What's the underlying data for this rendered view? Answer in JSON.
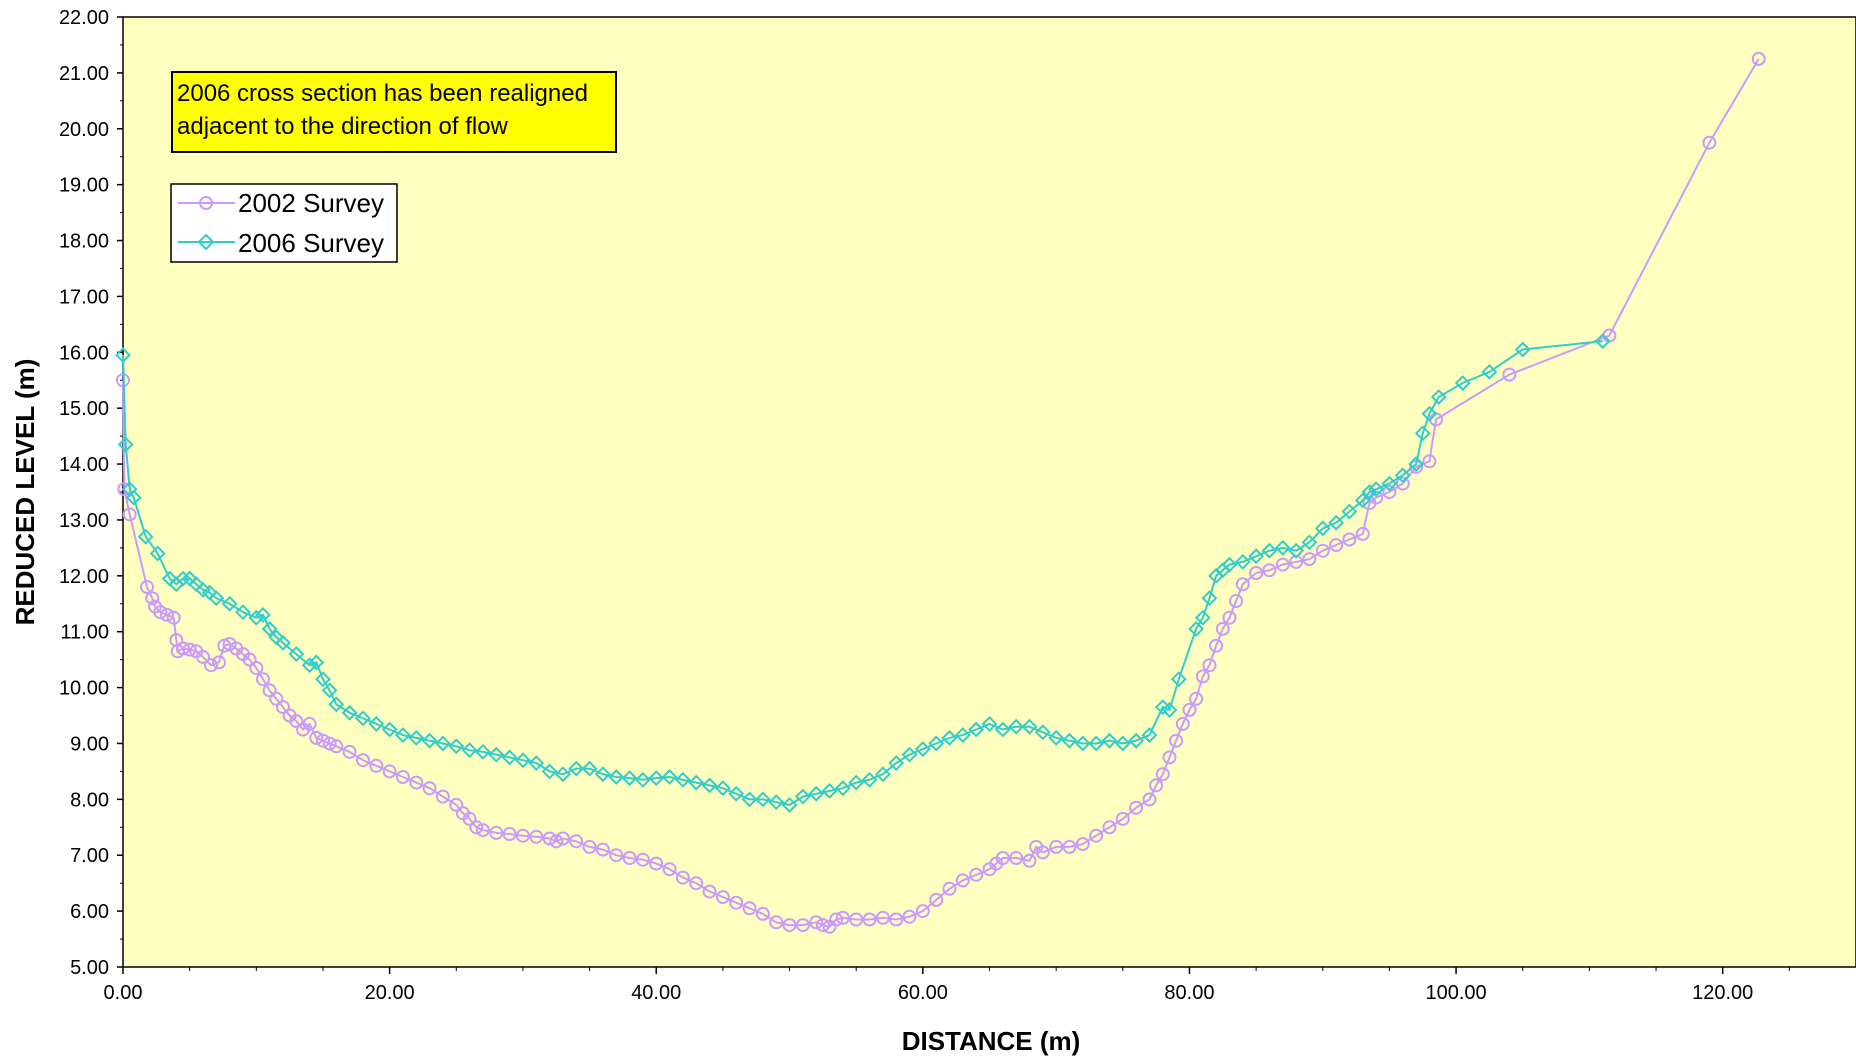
{
  "note": "2006 cross section has been realigned adjacent to the direction of flow",
  "colors": {
    "plot_bg": "#ffffc0",
    "survey_2002": "#cc99ff",
    "survey_2006": "#33cccc",
    "note_bg": "#ffff00"
  },
  "chart_data": {
    "type": "line",
    "xlabel": "DISTANCE (m)",
    "ylabel": "REDUCED LEVEL (m)",
    "xlim": [
      0,
      130
    ],
    "ylim": [
      5,
      22
    ],
    "x_ticks": [
      "0.00",
      "20.00",
      "40.00",
      "60.00",
      "80.00",
      "100.00",
      "120.00"
    ],
    "y_ticks": [
      "5.00",
      "6.00",
      "7.00",
      "8.00",
      "9.00",
      "10.00",
      "11.00",
      "12.00",
      "13.00",
      "14.00",
      "15.00",
      "16.00",
      "17.00",
      "18.00",
      "19.00",
      "20.00",
      "21.00",
      "22.00"
    ],
    "grid": false,
    "legend_position": "top-left",
    "series": [
      {
        "name": "2002 Survey",
        "marker": "circle",
        "points": [
          [
            0,
            15.5
          ],
          [
            0.1,
            13.55
          ],
          [
            0.5,
            13.1
          ],
          [
            1.8,
            11.8
          ],
          [
            2.2,
            11.6
          ],
          [
            2.4,
            11.45
          ],
          [
            2.8,
            11.35
          ],
          [
            3.3,
            11.3
          ],
          [
            3.8,
            11.25
          ],
          [
            4.0,
            10.85
          ],
          [
            4.1,
            10.65
          ],
          [
            4.5,
            10.7
          ],
          [
            5.0,
            10.68
          ],
          [
            5.5,
            10.65
          ],
          [
            6.0,
            10.55
          ],
          [
            6.6,
            10.4
          ],
          [
            7.2,
            10.45
          ],
          [
            7.6,
            10.75
          ],
          [
            8.0,
            10.78
          ],
          [
            8.5,
            10.7
          ],
          [
            9.0,
            10.6
          ],
          [
            9.5,
            10.5
          ],
          [
            10.0,
            10.35
          ],
          [
            10.5,
            10.15
          ],
          [
            11.0,
            9.95
          ],
          [
            11.5,
            9.8
          ],
          [
            12.0,
            9.65
          ],
          [
            12.5,
            9.5
          ],
          [
            13.0,
            9.4
          ],
          [
            13.5,
            9.25
          ],
          [
            14.0,
            9.35
          ],
          [
            14.5,
            9.1
          ],
          [
            15.0,
            9.05
          ],
          [
            15.5,
            9.0
          ],
          [
            16.0,
            8.95
          ],
          [
            17.0,
            8.85
          ],
          [
            18.0,
            8.7
          ],
          [
            19.0,
            8.6
          ],
          [
            20.0,
            8.5
          ],
          [
            21.0,
            8.4
          ],
          [
            22.0,
            8.3
          ],
          [
            23.0,
            8.2
          ],
          [
            24.0,
            8.05
          ],
          [
            25.0,
            7.9
          ],
          [
            25.5,
            7.75
          ],
          [
            26.0,
            7.65
          ],
          [
            26.5,
            7.5
          ],
          [
            27.0,
            7.45
          ],
          [
            28.0,
            7.4
          ],
          [
            29.0,
            7.38
          ],
          [
            30.0,
            7.35
          ],
          [
            31.0,
            7.33
          ],
          [
            32.0,
            7.3
          ],
          [
            32.5,
            7.25
          ],
          [
            33.0,
            7.3
          ],
          [
            34.0,
            7.25
          ],
          [
            35.0,
            7.15
          ],
          [
            36.0,
            7.1
          ],
          [
            37.0,
            7.0
          ],
          [
            38.0,
            6.95
          ],
          [
            39.0,
            6.92
          ],
          [
            40.0,
            6.85
          ],
          [
            41.0,
            6.75
          ],
          [
            42.0,
            6.6
          ],
          [
            43.0,
            6.5
          ],
          [
            44.0,
            6.35
          ],
          [
            45.0,
            6.25
          ],
          [
            46.0,
            6.15
          ],
          [
            47.0,
            6.05
          ],
          [
            48.0,
            5.95
          ],
          [
            49.0,
            5.8
          ],
          [
            50.0,
            5.75
          ],
          [
            51.0,
            5.75
          ],
          [
            52.0,
            5.8
          ],
          [
            52.5,
            5.75
          ],
          [
            53.0,
            5.72
          ],
          [
            53.5,
            5.85
          ],
          [
            54.0,
            5.88
          ],
          [
            55.0,
            5.85
          ],
          [
            56.0,
            5.85
          ],
          [
            57.0,
            5.88
          ],
          [
            58.0,
            5.85
          ],
          [
            59.0,
            5.9
          ],
          [
            60.0,
            6.0
          ],
          [
            61.0,
            6.2
          ],
          [
            62.0,
            6.4
          ],
          [
            63.0,
            6.55
          ],
          [
            64.0,
            6.65
          ],
          [
            65.0,
            6.75
          ],
          [
            65.5,
            6.85
          ],
          [
            66.0,
            6.95
          ],
          [
            67.0,
            6.95
          ],
          [
            68.0,
            6.9
          ],
          [
            68.5,
            7.15
          ],
          [
            69.0,
            7.05
          ],
          [
            70.0,
            7.15
          ],
          [
            71.0,
            7.15
          ],
          [
            72.0,
            7.2
          ],
          [
            73.0,
            7.35
          ],
          [
            74.0,
            7.5
          ],
          [
            75.0,
            7.65
          ],
          [
            76.0,
            7.85
          ],
          [
            77.0,
            8.0
          ],
          [
            77.5,
            8.25
          ],
          [
            78.0,
            8.45
          ],
          [
            78.5,
            8.75
          ],
          [
            79.0,
            9.05
          ],
          [
            79.5,
            9.35
          ],
          [
            80.0,
            9.6
          ],
          [
            80.5,
            9.8
          ],
          [
            81.0,
            10.2
          ],
          [
            81.5,
            10.4
          ],
          [
            82.0,
            10.75
          ],
          [
            82.5,
            11.05
          ],
          [
            83.0,
            11.25
          ],
          [
            83.5,
            11.55
          ],
          [
            84.0,
            11.85
          ],
          [
            85.0,
            12.05
          ],
          [
            86.0,
            12.1
          ],
          [
            87.0,
            12.2
          ],
          [
            88.0,
            12.25
          ],
          [
            89.0,
            12.3
          ],
          [
            90.0,
            12.45
          ],
          [
            91.0,
            12.55
          ],
          [
            92.0,
            12.65
          ],
          [
            93.0,
            12.75
          ],
          [
            93.5,
            13.3
          ],
          [
            94.0,
            13.4
          ],
          [
            95.0,
            13.5
          ],
          [
            96.0,
            13.65
          ],
          [
            97.0,
            13.95
          ],
          [
            98.0,
            14.05
          ],
          [
            98.5,
            14.8
          ],
          [
            104.0,
            15.6
          ],
          [
            111.5,
            16.3
          ],
          [
            119.0,
            19.75
          ],
          [
            122.7,
            21.25
          ]
        ]
      },
      {
        "name": "2006 Survey",
        "marker": "diamond",
        "points": [
          [
            0,
            15.95
          ],
          [
            0.2,
            14.35
          ],
          [
            0.5,
            13.55
          ],
          [
            0.8,
            13.4
          ],
          [
            1.7,
            12.7
          ],
          [
            2.6,
            12.4
          ],
          [
            3.5,
            11.95
          ],
          [
            4.0,
            11.85
          ],
          [
            4.5,
            11.95
          ],
          [
            5.0,
            11.95
          ],
          [
            5.5,
            11.85
          ],
          [
            6.0,
            11.75
          ],
          [
            6.5,
            11.7
          ],
          [
            7.0,
            11.6
          ],
          [
            8.0,
            11.5
          ],
          [
            9.0,
            11.35
          ],
          [
            10.0,
            11.25
          ],
          [
            10.5,
            11.3
          ],
          [
            11.0,
            11.05
          ],
          [
            11.5,
            10.9
          ],
          [
            12.0,
            10.8
          ],
          [
            13.0,
            10.6
          ],
          [
            14.0,
            10.4
          ],
          [
            14.5,
            10.45
          ],
          [
            15.0,
            10.15
          ],
          [
            15.5,
            9.95
          ],
          [
            16.0,
            9.7
          ],
          [
            17.0,
            9.55
          ],
          [
            18.0,
            9.45
          ],
          [
            19.0,
            9.35
          ],
          [
            20.0,
            9.25
          ],
          [
            21.0,
            9.15
          ],
          [
            22.0,
            9.1
          ],
          [
            23.0,
            9.05
          ],
          [
            24.0,
            9.0
          ],
          [
            25.0,
            8.95
          ],
          [
            26.0,
            8.88
          ],
          [
            27.0,
            8.85
          ],
          [
            28.0,
            8.8
          ],
          [
            29.0,
            8.75
          ],
          [
            30.0,
            8.7
          ],
          [
            31.0,
            8.65
          ],
          [
            32.0,
            8.5
          ],
          [
            33.0,
            8.45
          ],
          [
            34.0,
            8.55
          ],
          [
            35.0,
            8.55
          ],
          [
            36.0,
            8.45
          ],
          [
            37.0,
            8.4
          ],
          [
            38.0,
            8.38
          ],
          [
            39.0,
            8.35
          ],
          [
            40.0,
            8.38
          ],
          [
            41.0,
            8.4
          ],
          [
            42.0,
            8.35
          ],
          [
            43.0,
            8.3
          ],
          [
            44.0,
            8.25
          ],
          [
            45.0,
            8.2
          ],
          [
            46.0,
            8.1
          ],
          [
            47.0,
            8.0
          ],
          [
            48.0,
            8.0
          ],
          [
            49.0,
            7.95
          ],
          [
            50.0,
            7.9
          ],
          [
            51.0,
            8.05
          ],
          [
            52.0,
            8.1
          ],
          [
            53.0,
            8.15
          ],
          [
            54.0,
            8.2
          ],
          [
            55.0,
            8.3
          ],
          [
            56.0,
            8.35
          ],
          [
            57.0,
            8.45
          ],
          [
            58.0,
            8.65
          ],
          [
            59.0,
            8.8
          ],
          [
            60.0,
            8.9
          ],
          [
            61.0,
            9.0
          ],
          [
            62.0,
            9.1
          ],
          [
            63.0,
            9.15
          ],
          [
            64.0,
            9.25
          ],
          [
            65.0,
            9.35
          ],
          [
            66.0,
            9.25
          ],
          [
            67.0,
            9.3
          ],
          [
            68.0,
            9.3
          ],
          [
            69.0,
            9.2
          ],
          [
            70.0,
            9.1
          ],
          [
            71.0,
            9.05
          ],
          [
            72.0,
            9.0
          ],
          [
            73.0,
            9.0
          ],
          [
            74.0,
            9.05
          ],
          [
            75.0,
            9.0
          ],
          [
            76.0,
            9.05
          ],
          [
            77.0,
            9.15
          ],
          [
            78.0,
            9.65
          ],
          [
            78.5,
            9.6
          ],
          [
            79.2,
            10.15
          ],
          [
            80.5,
            11.05
          ],
          [
            81.0,
            11.25
          ],
          [
            81.5,
            11.6
          ],
          [
            82.0,
            12.0
          ],
          [
            82.5,
            12.1
          ],
          [
            83.0,
            12.2
          ],
          [
            84.0,
            12.25
          ],
          [
            85.0,
            12.35
          ],
          [
            86.0,
            12.45
          ],
          [
            87.0,
            12.5
          ],
          [
            88.0,
            12.45
          ],
          [
            89.0,
            12.6
          ],
          [
            90.0,
            12.85
          ],
          [
            91.0,
            12.95
          ],
          [
            92.0,
            13.15
          ],
          [
            93.0,
            13.35
          ],
          [
            93.5,
            13.5
          ],
          [
            94.0,
            13.55
          ],
          [
            95.0,
            13.65
          ],
          [
            96.0,
            13.8
          ],
          [
            97.0,
            14.0
          ],
          [
            97.5,
            14.55
          ],
          [
            98.0,
            14.9
          ],
          [
            98.7,
            15.2
          ],
          [
            100.5,
            15.45
          ],
          [
            102.5,
            15.65
          ],
          [
            105.0,
            16.05
          ],
          [
            111.0,
            16.2
          ]
        ]
      }
    ]
  }
}
